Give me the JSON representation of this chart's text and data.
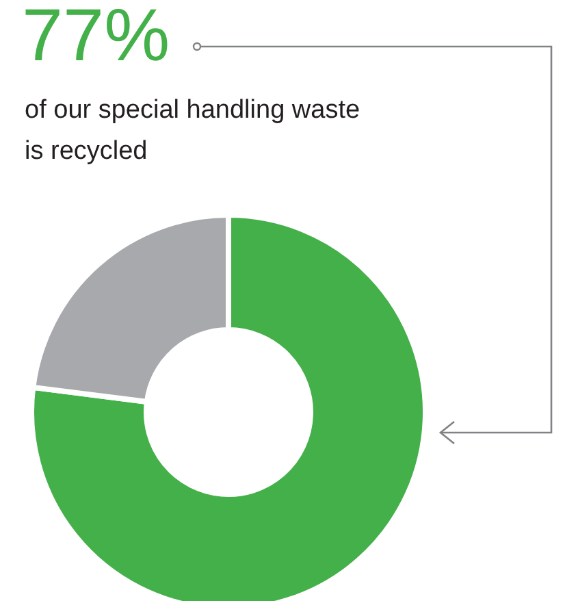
{
  "chart_data": {
    "type": "donut",
    "title": "77%",
    "subtitle": "of our special handling waste is recycled",
    "categories": [
      null,
      null
    ],
    "values": [
      77,
      23
    ],
    "colors": [
      "#44b04a",
      "#a7a9ac"
    ]
  }
}
